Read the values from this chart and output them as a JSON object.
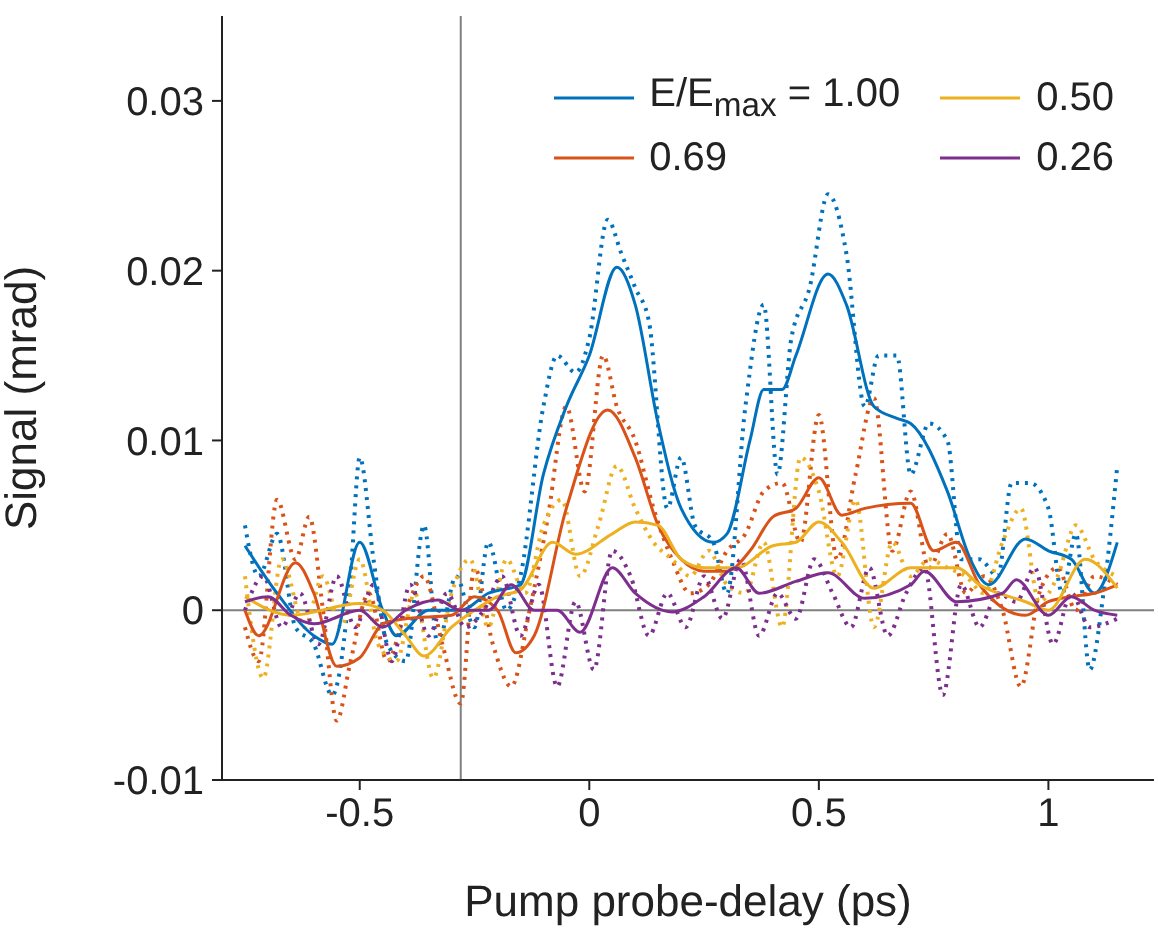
{
  "chart_data": {
    "type": "line",
    "xlabel": "Pump probe-delay (ps)",
    "ylabel": "Signal (mrad)",
    "xlim": [
      -0.8,
      1.23
    ],
    "ylim": [
      -0.01,
      0.035
    ],
    "xticks": [
      -0.5,
      0,
      0.5,
      1
    ],
    "yticks": [
      -0.01,
      0,
      0.01,
      0.02,
      0.03
    ],
    "grid": false,
    "legend": "top right",
    "marker": "none",
    "ref_lines": [
      {
        "axis": "x",
        "value": -0.28,
        "color": "#808080"
      },
      {
        "axis": "y",
        "value": 0,
        "color": "#808080"
      }
    ],
    "series": [
      {
        "color": "#0072bd",
        "line_style": "dotted",
        "x": [
          -0.75,
          -0.72,
          -0.68,
          -0.64,
          -0.6,
          -0.56,
          -0.52,
          -0.5,
          -0.47,
          -0.44,
          -0.4,
          -0.36,
          -0.33,
          -0.29,
          -0.25,
          -0.22,
          -0.18,
          -0.15,
          -0.1,
          -0.07,
          -0.03,
          0,
          0.04,
          0.07,
          0.1,
          0.13,
          0.17,
          0.2,
          0.23,
          0.27,
          0.3,
          0.34,
          0.38,
          0.41,
          0.44,
          0.48,
          0.52,
          0.56,
          0.6,
          0.63,
          0.67,
          0.7,
          0.74,
          0.78,
          0.81,
          0.85,
          0.89,
          0.92,
          0.96,
          1,
          1.03,
          1.06,
          1.09,
          1.12,
          1.15
        ],
        "values": [
          0.005,
          0.002,
          0.0045,
          -0.001,
          -0.002,
          -0.005,
          0.002,
          0.009,
          0.003,
          -0.002,
          -0.003,
          0.005,
          -0.002,
          0.002,
          -0.001,
          0.004,
          0,
          0.002,
          0.012,
          0.015,
          0.014,
          0.016,
          0.023,
          0.021,
          0.019,
          0.017,
          0.006,
          0.009,
          0.005,
          0.004,
          0.001,
          0.012,
          0.018,
          0.008,
          0.016,
          0.019,
          0.0245,
          0.021,
          0.012,
          0.015,
          0.015,
          0.008,
          0.011,
          0.01,
          0.003,
          0.003,
          0.002,
          0.0075,
          0.0075,
          0.006,
          0.001,
          0.0045,
          -0.0035,
          0.001,
          0.0085
        ]
      },
      {
        "color": "#d95319",
        "line_style": "dotted",
        "x": [
          -0.75,
          -0.72,
          -0.68,
          -0.64,
          -0.61,
          -0.58,
          -0.55,
          -0.52,
          -0.48,
          -0.44,
          -0.4,
          -0.36,
          -0.32,
          -0.28,
          -0.25,
          -0.21,
          -0.17,
          -0.13,
          -0.09,
          -0.05,
          -0.01,
          0.03,
          0.06,
          0.1,
          0.14,
          0.18,
          0.22,
          0.26,
          0.3,
          0.34,
          0.38,
          0.42,
          0.46,
          0.5,
          0.54,
          0.58,
          0.62,
          0.66,
          0.7,
          0.74,
          0.78,
          0.82,
          0.86,
          0.9,
          0.94,
          0.98,
          1.02,
          1.06,
          1.1,
          1.15
        ],
        "values": [
          -0.001,
          -0.003,
          0.0065,
          0.003,
          0.0055,
          0,
          -0.0065,
          -0.003,
          0.001,
          -0.003,
          0,
          0.002,
          -0.002,
          -0.0055,
          0.0025,
          -0.002,
          -0.0045,
          0,
          0.0055,
          0.012,
          0.007,
          0.015,
          0.012,
          0.01,
          0.006,
          0.003,
          0.001,
          0.0015,
          0.0035,
          0.0045,
          0.007,
          0.0075,
          0.004,
          0.0115,
          0.003,
          0.008,
          0.0125,
          0.0035,
          0.007,
          0.0025,
          0.0045,
          0.001,
          0.002,
          0,
          -0.0045,
          0.001,
          0.0025,
          0,
          0.002,
          0.0015
        ]
      },
      {
        "color": "#edb120",
        "line_style": "dotted",
        "x": [
          -0.75,
          -0.71,
          -0.67,
          -0.62,
          -0.58,
          -0.54,
          -0.5,
          -0.46,
          -0.42,
          -0.38,
          -0.34,
          -0.3,
          -0.26,
          -0.22,
          -0.18,
          -0.14,
          -0.1,
          -0.06,
          -0.02,
          0.02,
          0.06,
          0.1,
          0.14,
          0.18,
          0.22,
          0.26,
          0.3,
          0.34,
          0.38,
          0.42,
          0.46,
          0.5,
          0.54,
          0.58,
          0.62,
          0.66,
          0.7,
          0.74,
          0.78,
          0.82,
          0.86,
          0.9,
          0.94,
          0.98,
          1.02,
          1.06,
          1.1,
          1.15
        ],
        "values": [
          0.002,
          -0.004,
          0.003,
          -0.001,
          0.002,
          -0.001,
          0.003,
          -0.002,
          -0.003,
          0.001,
          -0.004,
          0.001,
          0.003,
          -0.001,
          0.003,
          0.001,
          0.005,
          0.0065,
          0.002,
          0.005,
          0.0085,
          0.006,
          0.004,
          0.003,
          0.002,
          0.0035,
          0.0015,
          0.001,
          0.004,
          -0.001,
          0.009,
          0.007,
          0.002,
          0.0065,
          -0.001,
          0.004,
          0.002,
          0.003,
          0.0025,
          0.002,
          0.001,
          0.004,
          0.006,
          0.0005,
          0.002,
          0.005,
          0.003,
          0.002
        ]
      },
      {
        "color": "#7e2f8e",
        "line_style": "dotted",
        "x": [
          -0.75,
          -0.71,
          -0.67,
          -0.63,
          -0.59,
          -0.55,
          -0.51,
          -0.47,
          -0.43,
          -0.39,
          -0.35,
          -0.31,
          -0.27,
          -0.23,
          -0.19,
          -0.15,
          -0.11,
          -0.07,
          -0.03,
          0.01,
          0.05,
          0.09,
          0.13,
          0.17,
          0.21,
          0.25,
          0.29,
          0.33,
          0.37,
          0.41,
          0.45,
          0.49,
          0.53,
          0.57,
          0.61,
          0.65,
          0.69,
          0.73,
          0.77,
          0.81,
          0.85,
          0.89,
          0.93,
          0.97,
          1.01,
          1.05,
          1.09,
          1.15
        ],
        "values": [
          0,
          0.002,
          -0.001,
          0.001,
          -0.002,
          0.002,
          -0.001,
          0.0015,
          -0.003,
          0.0015,
          -0.0015,
          0.001,
          -0.001,
          0,
          0.002,
          -0.0015,
          0.0015,
          -0.0045,
          0.0005,
          -0.0035,
          0.0035,
          0.002,
          -0.0015,
          0.001,
          -0.001,
          0.002,
          -0.0005,
          0.003,
          -0.0015,
          0.001,
          -0.0005,
          0.003,
          0.001,
          -0.001,
          0.0025,
          -0.0015,
          0.001,
          0.0025,
          -0.005,
          0.0015,
          -0.001,
          0.001,
          0.0005,
          0.0025,
          -0.002,
          0.001,
          -0.001,
          -0.0005
        ]
      },
      {
        "name": "E/E$_{max}$ = 1.00",
        "color": "#0072bd",
        "line_style": "solid",
        "x": [
          -0.75,
          -0.68,
          -0.6,
          -0.56,
          -0.5,
          -0.45,
          -0.42,
          -0.35,
          -0.28,
          -0.22,
          -0.15,
          -0.1,
          -0.05,
          0,
          0.06,
          0.1,
          0.15,
          0.2,
          0.27,
          0.3,
          0.35,
          0.38,
          0.42,
          0.45,
          0.52,
          0.56,
          0.62,
          0.67,
          0.7,
          0.78,
          0.83,
          0.87,
          0.95,
          1,
          1.05,
          1.1,
          1.15
        ],
        "values": [
          0.0038,
          0.001,
          -0.0015,
          -0.002,
          0.004,
          0,
          -0.0015,
          0,
          0,
          0.001,
          0.0015,
          0.008,
          0.012,
          0.015,
          0.0202,
          0.018,
          0.011,
          0.006,
          0.004,
          0.0045,
          0.01,
          0.013,
          0.013,
          0.015,
          0.0198,
          0.018,
          0.012,
          0.0113,
          0.011,
          0.007,
          0.003,
          0.0015,
          0.0042,
          0.0035,
          0.003,
          0.001,
          0.004
        ]
      },
      {
        "name": "0.69",
        "color": "#d95319",
        "line_style": "solid",
        "x": [
          -0.75,
          -0.72,
          -0.64,
          -0.6,
          -0.55,
          -0.5,
          -0.45,
          -0.4,
          -0.3,
          -0.25,
          -0.2,
          -0.16,
          -0.12,
          -0.05,
          0.04,
          0.1,
          0.15,
          0.2,
          0.25,
          0.3,
          0.35,
          0.4,
          0.45,
          0.5,
          0.55,
          0.6,
          0.7,
          0.75,
          0.8,
          0.85,
          0.95,
          1,
          1.05,
          1.1,
          1.15
        ],
        "values": [
          0,
          -0.0015,
          0.0028,
          0.001,
          -0.0033,
          -0.0028,
          -0.0008,
          -0.0005,
          -0.0003,
          0.0008,
          0,
          -0.0025,
          -0.0015,
          0.006,
          0.0118,
          0.009,
          0.005,
          0.003,
          0.0023,
          0.0023,
          0.0035,
          0.0055,
          0.006,
          0.0078,
          0.0056,
          0.006,
          0.0063,
          0.0035,
          0.004,
          0.0015,
          -0.0003,
          0.0005,
          0.0008,
          0.001,
          0.0015
        ]
      },
      {
        "name": "0.50",
        "color": "#edb120",
        "line_style": "solid",
        "x": [
          -0.75,
          -0.65,
          -0.5,
          -0.45,
          -0.4,
          -0.36,
          -0.3,
          -0.25,
          -0.2,
          -0.15,
          -0.08,
          -0.03,
          0.05,
          0.1,
          0.15,
          0.2,
          0.25,
          0.32,
          0.4,
          0.45,
          0.5,
          0.55,
          0.62,
          0.7,
          0.8,
          0.85,
          0.95,
          1,
          1.08,
          1.15
        ],
        "values": [
          0.0008,
          -0.0003,
          0.0004,
          0,
          -0.0015,
          -0.0027,
          -0.001,
          0,
          0.0008,
          0.0012,
          0.004,
          0.0033,
          0.0045,
          0.0052,
          0.005,
          0.003,
          0.0025,
          0.0025,
          0.0038,
          0.004,
          0.0052,
          0.004,
          0.0013,
          0.0025,
          0.0025,
          0.0015,
          0.0005,
          0,
          0.003,
          0.0013
        ]
      },
      {
        "name": "0.26",
        "color": "#7e2f8e",
        "line_style": "solid",
        "x": [
          -0.75,
          -0.7,
          -0.65,
          -0.6,
          -0.5,
          -0.45,
          -0.4,
          -0.33,
          -0.28,
          -0.22,
          -0.17,
          -0.12,
          -0.07,
          -0.02,
          0.05,
          0.1,
          0.18,
          0.25,
          0.32,
          0.37,
          0.45,
          0.52,
          0.6,
          0.7,
          0.73,
          0.8,
          0.9,
          0.93,
          1,
          1.05,
          1.1,
          1.15
        ],
        "values": [
          0.0005,
          0.0008,
          -0.0003,
          -0.0008,
          0,
          -0.001,
          0,
          0.0006,
          0,
          0,
          0.0015,
          0,
          0,
          -0.0013,
          0.0025,
          0.001,
          -0.0001,
          0.0008,
          0.0025,
          0.001,
          0.0017,
          0.0022,
          0.0007,
          0.0015,
          0.0023,
          0.0005,
          0.001,
          0.0018,
          -0.0003,
          0.0008,
          0,
          -0.0003
        ]
      }
    ]
  }
}
